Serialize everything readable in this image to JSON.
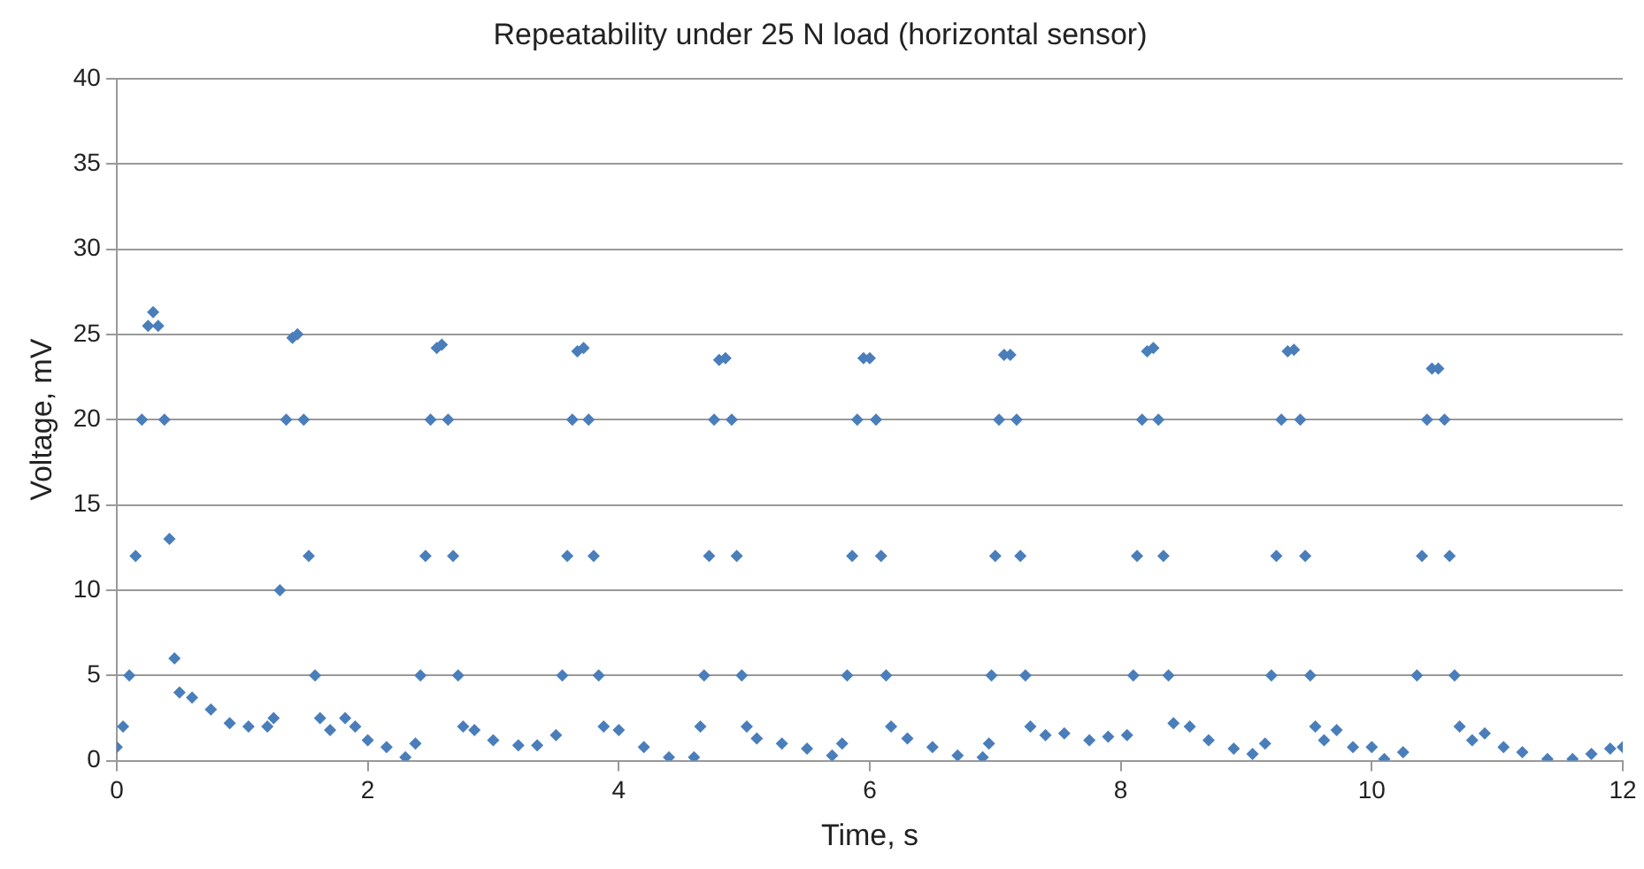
{
  "chart_data": {
    "type": "scatter",
    "title": "Repeatability under 25 N load (horizontal sensor)",
    "xlabel": "Time, s",
    "ylabel": "Voltage, mV",
    "xlim": [
      0,
      12
    ],
    "xticks": [
      0,
      2,
      4,
      6,
      8,
      10,
      12
    ],
    "ylim": [
      0,
      40
    ],
    "yticks": [
      0,
      5,
      10,
      15,
      20,
      25,
      30,
      35,
      40
    ],
    "grid": "y",
    "legend": false,
    "marker": "diamond",
    "series": [
      {
        "color": "#4a7ebb",
        "x": [
          0,
          0.05,
          0.1,
          0.15,
          0.2,
          0.25,
          0.29,
          0.33,
          0.38,
          0.42,
          0.46,
          0.5,
          0.6,
          0.75,
          0.9,
          1.05,
          1.2,
          1.25,
          1.3,
          1.35,
          1.4,
          1.44,
          1.49,
          1.53,
          1.58,
          1.62,
          1.7,
          1.82,
          1.9,
          2.0,
          2.15,
          2.3,
          2.38,
          2.42,
          2.46,
          2.5,
          2.55,
          2.59,
          2.64,
          2.68,
          2.72,
          2.76,
          2.85,
          3.0,
          3.2,
          3.35,
          3.5,
          3.55,
          3.59,
          3.63,
          3.67,
          3.72,
          3.76,
          3.8,
          3.84,
          3.88,
          4.0,
          4.2,
          4.4,
          4.6,
          4.65,
          4.68,
          4.72,
          4.76,
          4.8,
          4.85,
          4.9,
          4.94,
          4.98,
          5.02,
          5.1,
          5.3,
          5.5,
          5.7,
          5.78,
          5.82,
          5.86,
          5.9,
          5.95,
          6.0,
          6.05,
          6.09,
          6.13,
          6.17,
          6.3,
          6.5,
          6.7,
          6.9,
          6.95,
          6.97,
          7.0,
          7.03,
          7.07,
          7.12,
          7.17,
          7.2,
          7.24,
          7.28,
          7.4,
          7.55,
          7.75,
          7.9,
          8.05,
          8.1,
          8.13,
          8.17,
          8.21,
          8.26,
          8.3,
          8.34,
          8.38,
          8.42,
          8.55,
          8.7,
          8.9,
          9.05,
          9.15,
          9.2,
          9.24,
          9.28,
          9.33,
          9.38,
          9.43,
          9.47,
          9.51,
          9.55,
          9.62,
          9.72,
          9.85,
          10.0,
          10.1,
          10.25,
          10.36,
          10.4,
          10.44,
          10.48,
          10.53,
          10.58,
          10.62,
          10.66,
          10.7,
          10.8,
          10.9,
          11.05,
          11.2,
          11.4,
          11.6,
          11.75,
          11.9,
          12
        ],
        "values": [
          0.8,
          2,
          5,
          12,
          20,
          25.5,
          26.3,
          25.5,
          20,
          13,
          6,
          4,
          3.7,
          3,
          2.2,
          2,
          2,
          2.5,
          10,
          20,
          24.8,
          25,
          20,
          12,
          5,
          2.5,
          1.8,
          2.5,
          2,
          1.2,
          0.8,
          0.2,
          1,
          5,
          12,
          20,
          24.2,
          24.4,
          20,
          12,
          5,
          2,
          1.8,
          1.2,
          0.9,
          0.9,
          1.5,
          5,
          12,
          20,
          24,
          24.2,
          20,
          12,
          5,
          2,
          1.8,
          0.8,
          0.2,
          0.2,
          2,
          5,
          12,
          20,
          23.5,
          23.6,
          20,
          12,
          5,
          2,
          1.3,
          1,
          0.7,
          0.3,
          1,
          5,
          12,
          20,
          23.6,
          23.6,
          20,
          12,
          5,
          2,
          1.3,
          0.8,
          0.3,
          0.2,
          1,
          5,
          12,
          20,
          23.8,
          23.8,
          20,
          12,
          5,
          2,
          1.5,
          1.6,
          1.2,
          1.4,
          1.5,
          5,
          12,
          20,
          24,
          24.2,
          20,
          12,
          5,
          2.2,
          2,
          1.2,
          0.7,
          0.4,
          1,
          5,
          12,
          20,
          24,
          24.1,
          20,
          12,
          5,
          2,
          1.2,
          1.8,
          0.8,
          0.8,
          0.1,
          0.5,
          5,
          12,
          20,
          23,
          23,
          20,
          12,
          5,
          2,
          1.2,
          1.6,
          0.8,
          0.5,
          0.1,
          0.1,
          0.4,
          0.7,
          0.8
        ]
      }
    ]
  }
}
